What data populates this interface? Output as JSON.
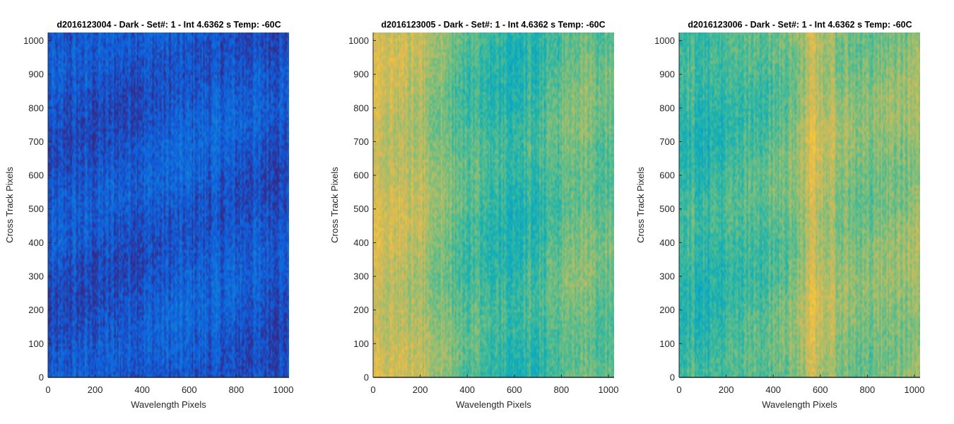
{
  "chart_data": [
    {
      "type": "heatmap",
      "title": "d2016123004 - Dark - Set#: 1 - Int 4.6362 s Temp: -60C",
      "xlabel": "Wavelength Pixels",
      "ylabel": "Cross Track Pixels",
      "xlim": [
        0,
        1024
      ],
      "ylim": [
        0,
        1024
      ],
      "xticks": [
        0,
        200,
        400,
        600,
        800,
        1000
      ],
      "yticks": [
        0,
        100,
        200,
        300,
        400,
        500,
        600,
        700,
        800,
        900,
        1000
      ],
      "colormap": "parula",
      "column_profile": [
        0.08,
        0.09,
        0.09,
        0.1,
        0.11,
        0.12,
        0.12,
        0.11,
        0.1,
        0.09
      ],
      "colors": {
        "base": "#3139a8",
        "light": "#3447b8",
        "dark": "#2a309a"
      }
    },
    {
      "type": "heatmap",
      "title": "d2016123005 - Dark - Set#: 1 - Int 4.6362 s Temp: -60C",
      "xlabel": "Wavelength Pixels",
      "ylabel": "Cross Track Pixels",
      "xlim": [
        0,
        1024
      ],
      "ylim": [
        0,
        1024
      ],
      "xticks": [
        0,
        200,
        400,
        600,
        800,
        1000
      ],
      "yticks": [
        0,
        100,
        200,
        300,
        400,
        500,
        600,
        700,
        800,
        900,
        1000
      ],
      "colormap": "parula",
      "column_profile": [
        0.78,
        0.72,
        0.68,
        0.58,
        0.52,
        0.48,
        0.5,
        0.56,
        0.6,
        0.56
      ],
      "colors": {
        "base": "#5fbf8a",
        "light": "#c8b44a",
        "dark": "#1fa8c4"
      }
    },
    {
      "type": "heatmap",
      "title": "d2016123006 - Dark - Set#: 1 - Int 4.6362 s Temp: -60C",
      "xlabel": "Wavelength Pixels",
      "ylabel": "Cross Track Pixels",
      "xlim": [
        0,
        1024
      ],
      "ylim": [
        0,
        1024
      ],
      "xticks": [
        0,
        200,
        400,
        600,
        800,
        1000
      ],
      "yticks": [
        0,
        100,
        200,
        300,
        400,
        500,
        600,
        700,
        800,
        900,
        1000
      ],
      "colormap": "parula",
      "column_profile": [
        0.52,
        0.48,
        0.5,
        0.54,
        0.58,
        0.74,
        0.64,
        0.6,
        0.62,
        0.66
      ],
      "colors": {
        "base": "#5fbf8a",
        "light": "#c8b44a",
        "dark": "#1fa8c4"
      }
    }
  ]
}
